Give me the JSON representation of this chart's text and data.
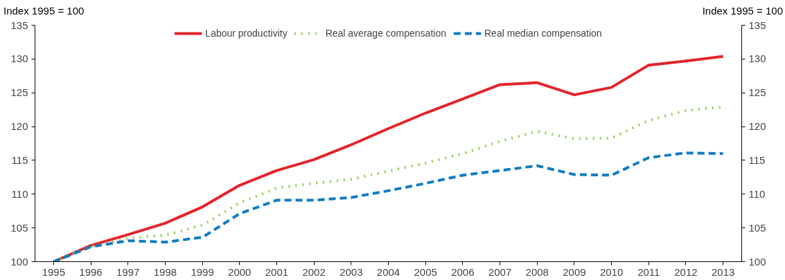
{
  "chart_data": {
    "type": "line",
    "ylabel": "Index 1995 = 100",
    "y2label": "Index 1995 = 100",
    "categories": [
      "1995",
      "1996",
      "1997",
      "1998",
      "1999",
      "2000",
      "2001",
      "2002",
      "2003",
      "2004",
      "2005",
      "2006",
      "2007",
      "2008",
      "2009",
      "2010",
      "2011",
      "2012",
      "2013"
    ],
    "series": [
      {
        "name": "Labour productivity",
        "color": "#e3242b",
        "line_style": "solid",
        "values": [
          100,
          102.4,
          104.0,
          105.7,
          108.1,
          111.3,
          113.5,
          115.1,
          117.3,
          119.7,
          122.0,
          124.1,
          126.2,
          126.5,
          124.7,
          125.8,
          129.1,
          129.7,
          130.4
        ]
      },
      {
        "name": "Real average compensation",
        "color": "#92d050",
        "line_style": "dotted",
        "values": [
          100,
          102.2,
          103.5,
          103.9,
          105.4,
          108.7,
          110.9,
          111.6,
          112.2,
          113.4,
          114.6,
          116.0,
          117.8,
          119.3,
          118.2,
          118.3,
          120.9,
          122.4,
          122.9
        ]
      },
      {
        "name": "Real median compensation",
        "color": "#0f7dc2",
        "line_style": "dashed",
        "values": [
          100,
          102.2,
          103.1,
          102.9,
          103.6,
          107.1,
          109.1,
          109.1,
          109.5,
          110.5,
          111.6,
          112.8,
          113.5,
          114.2,
          112.9,
          112.8,
          115.4,
          116.1,
          116.0
        ]
      }
    ],
    "ylim": [
      100,
      135
    ],
    "yticks": [
      100,
      105,
      110,
      115,
      120,
      125,
      130,
      135
    ],
    "y2lim": [
      100,
      135
    ],
    "y2ticks": [
      100,
      105,
      110,
      115,
      120,
      125,
      130,
      135
    ],
    "legend": "top",
    "grid": false
  }
}
